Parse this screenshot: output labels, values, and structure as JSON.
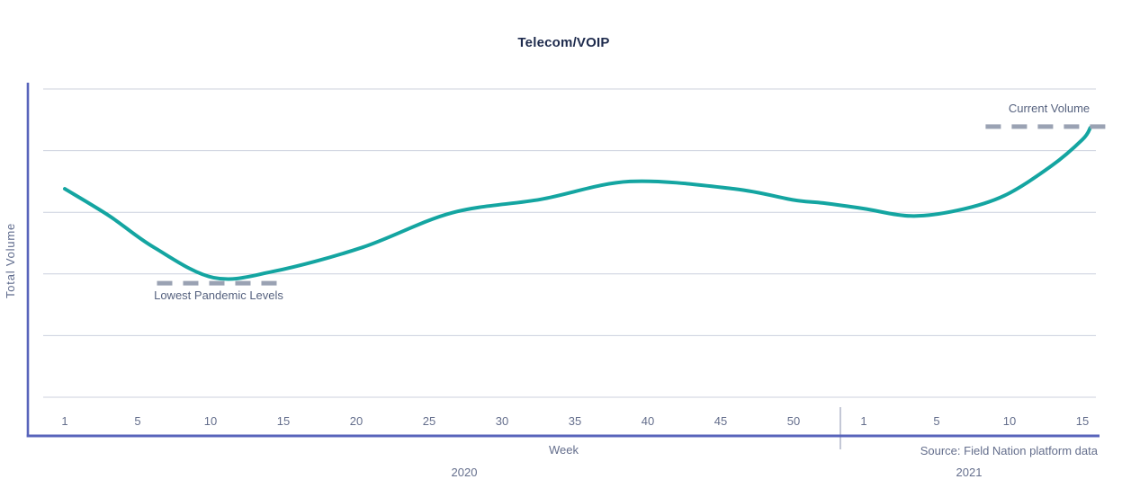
{
  "chart_data": {
    "type": "line",
    "title": "Telecom/VOIP",
    "xlabel": "Week",
    "ylabel": "Total Volume",
    "source": "Source: Field Nation platform data",
    "grid": true,
    "legend": "none",
    "y_axis": {
      "tick_labels_shown": false,
      "units": "relative volume (axis unlabeled)",
      "range": [
        5,
        65
      ],
      "gridline_values": [
        10,
        20,
        30,
        40,
        50,
        60
      ]
    },
    "x_groups": [
      {
        "year": "2020",
        "tick_labels": [
          "1",
          "5",
          "10",
          "15",
          "20",
          "25",
          "30",
          "35",
          "40",
          "45",
          "50"
        ]
      },
      {
        "year": "2021",
        "tick_labels": [
          "1",
          "5",
          "10",
          "15"
        ]
      }
    ],
    "series": [
      {
        "name": "Total Volume",
        "color": "#14a5a1",
        "points": [
          {
            "year": "2020",
            "week": 1,
            "value": 43.8
          },
          {
            "year": "2020",
            "week": 4,
            "value": 39.4
          },
          {
            "year": "2020",
            "week": 7,
            "value": 34.3
          },
          {
            "year": "2020",
            "week": 11,
            "value": 29.4
          },
          {
            "year": "2020",
            "week": 15,
            "value": 30.4
          },
          {
            "year": "2020",
            "week": 21,
            "value": 34.3
          },
          {
            "year": "2020",
            "week": 27,
            "value": 39.9
          },
          {
            "year": "2020",
            "week": 33,
            "value": 42.1
          },
          {
            "year": "2020",
            "week": 39,
            "value": 45.0
          },
          {
            "year": "2020",
            "week": 46,
            "value": 43.8
          },
          {
            "year": "2020",
            "week": 50,
            "value": 42.0
          },
          {
            "year": "2020",
            "week": 52,
            "value": 41.5
          },
          {
            "year": "2021",
            "week": 1,
            "value": 40.6
          },
          {
            "year": "2021",
            "week": 4,
            "value": 39.4
          },
          {
            "year": "2021",
            "week": 7,
            "value": 40.3
          },
          {
            "year": "2021",
            "week": 10,
            "value": 42.7
          },
          {
            "year": "2021",
            "week": 13,
            "value": 47.5
          },
          {
            "year": "2021",
            "week": 15,
            "value": 51.8
          },
          {
            "year": "2021",
            "week": 15.5,
            "value": 53.7
          }
        ]
      }
    ],
    "annotations": [
      {
        "id": "current-volume",
        "label": "Current Volume",
        "value": 53.9,
        "year": "2021",
        "week_start": 8.8,
        "week_end": 16.7,
        "label_side": "above"
      },
      {
        "id": "lowest-pandemic-levels",
        "label": "Lowest Pandemic Levels",
        "value": 28.5,
        "year": "2020",
        "week_start": 7.2,
        "week_end": 15.4,
        "label_side": "below"
      }
    ],
    "colors": {
      "line": "#14a5a1",
      "axis": "#5864bb",
      "gridline": "#ccd1de",
      "annotation_dash": "#9aa2b3",
      "divider": "#aab1c4",
      "text": "#646e8c",
      "title": "#1e2b4d"
    }
  }
}
